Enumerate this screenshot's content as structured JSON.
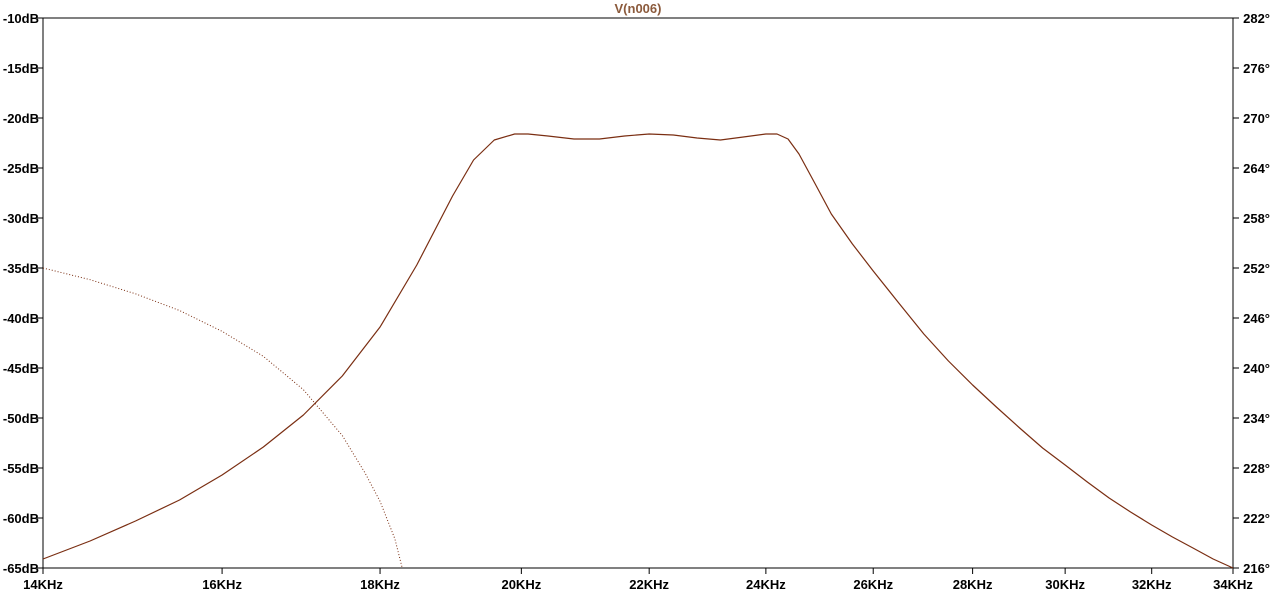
{
  "chart_data": {
    "type": "line",
    "title": "V(n006)",
    "title_color": "#8b5a3c",
    "trace_color": "#7a2e12",
    "xlabel": "",
    "ylabel": "",
    "y2label": "",
    "x_scale": "log",
    "grid": false,
    "xlim": [
      14000,
      34000
    ],
    "ylim": [
      -65,
      -10
    ],
    "y2lim": [
      216,
      282
    ],
    "x_ticks": [
      {
        "value": 14000,
        "label": "14KHz"
      },
      {
        "value": 16000,
        "label": "16KHz"
      },
      {
        "value": 18000,
        "label": "18KHz"
      },
      {
        "value": 20000,
        "label": "20KHz"
      },
      {
        "value": 22000,
        "label": "22KHz"
      },
      {
        "value": 24000,
        "label": "24KHz"
      },
      {
        "value": 26000,
        "label": "26KHz"
      },
      {
        "value": 28000,
        "label": "28KHz"
      },
      {
        "value": 30000,
        "label": "30KHz"
      },
      {
        "value": 32000,
        "label": "32KHz"
      },
      {
        "value": 34000,
        "label": "34KHz"
      }
    ],
    "y_ticks": [
      {
        "value": -10,
        "label": "-10dB"
      },
      {
        "value": -15,
        "label": "-15dB"
      },
      {
        "value": -20,
        "label": "-20dB"
      },
      {
        "value": -25,
        "label": "-25dB"
      },
      {
        "value": -30,
        "label": "-30dB"
      },
      {
        "value": -35,
        "label": "-35dB"
      },
      {
        "value": -40,
        "label": "-40dB"
      },
      {
        "value": -45,
        "label": "-45dB"
      },
      {
        "value": -50,
        "label": "-50dB"
      },
      {
        "value": -55,
        "label": "-55dB"
      },
      {
        "value": -60,
        "label": "-60dB"
      },
      {
        "value": -65,
        "label": "-65dB"
      }
    ],
    "y2_ticks": [
      {
        "value": 282,
        "label": "282°"
      },
      {
        "value": 276,
        "label": "276°"
      },
      {
        "value": 270,
        "label": "270°"
      },
      {
        "value": 264,
        "label": "264°"
      },
      {
        "value": 258,
        "label": "258°"
      },
      {
        "value": 252,
        "label": "252°"
      },
      {
        "value": 246,
        "label": "246°"
      },
      {
        "value": 240,
        "label": "240°"
      },
      {
        "value": 234,
        "label": "234°"
      },
      {
        "value": 228,
        "label": "228°"
      },
      {
        "value": 222,
        "label": "222°"
      },
      {
        "value": 216,
        "label": "216°"
      }
    ],
    "series": [
      {
        "axis": "left",
        "style": "solid",
        "x": [
          14000,
          14500,
          15000,
          15500,
          16000,
          16500,
          17000,
          17500,
          18000,
          18500,
          19000,
          19300,
          19600,
          19900,
          20100,
          20400,
          20800,
          21200,
          21600,
          22000,
          22400,
          22800,
          23200,
          23600,
          24000,
          24200,
          24400,
          24600,
          24900,
          25200,
          25600,
          26000,
          26500,
          27000,
          27500,
          28000,
          28500,
          29000,
          29500,
          30000,
          30500,
          31000,
          31500,
          32000,
          32500,
          33000,
          33500,
          34000
        ],
        "y": [
          -64.1,
          -62.3,
          -60.3,
          -58.2,
          -55.7,
          -52.9,
          -49.7,
          -45.8,
          -40.9,
          -34.7,
          -27.8,
          -24.2,
          -22.2,
          -21.6,
          -21.6,
          -21.8,
          -22.1,
          -22.1,
          -21.8,
          -21.6,
          -21.7,
          -22.0,
          -22.2,
          -21.9,
          -21.6,
          -21.6,
          -22.1,
          -23.6,
          -26.6,
          -29.6,
          -32.6,
          -35.3,
          -38.5,
          -41.6,
          -44.3,
          -46.7,
          -48.9,
          -51.0,
          -53.0,
          -54.7,
          -56.4,
          -58.0,
          -59.4,
          -60.7,
          -61.9,
          -63.0,
          -64.1,
          -65.0
        ]
      },
      {
        "axis": "right",
        "style": "dotted",
        "x": [
          14000,
          14500,
          15000,
          15500,
          16000,
          16500,
          17000,
          17500,
          17800,
          18000,
          18200,
          18300
        ],
        "y": [
          252.0,
          250.6,
          248.9,
          246.9,
          244.4,
          241.4,
          237.4,
          231.9,
          227.4,
          224.0,
          219.5,
          216.0
        ]
      }
    ]
  }
}
